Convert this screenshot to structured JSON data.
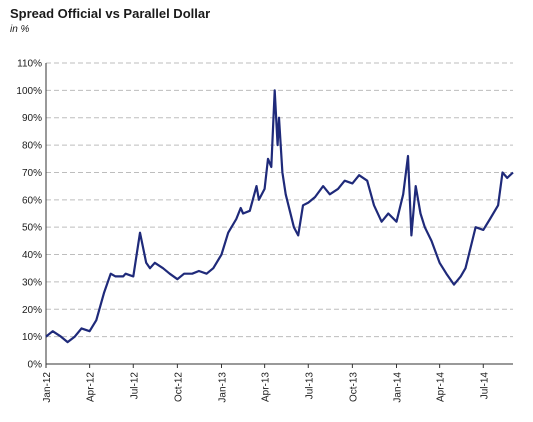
{
  "chart_data": {
    "type": "line",
    "title": "Spread Official vs Parallel Dollar",
    "subtitle": "in %",
    "xlabel": "",
    "ylabel": "",
    "ylim": [
      0,
      110
    ],
    "y_ticks": [
      "0%",
      "10%",
      "20%",
      "30%",
      "40%",
      "50%",
      "60%",
      "70%",
      "80%",
      "90%",
      "100%",
      "110%"
    ],
    "x_ticks": [
      "Jan-12",
      "Apr-12",
      "Jul-12",
      "Oct-12",
      "Jan-13",
      "Apr-13",
      "Jul-13",
      "Oct-13",
      "Jan-14",
      "Apr-14",
      "Jul-14"
    ],
    "grid": true,
    "color": "#1f2a7a",
    "series": [
      {
        "x": [
          "2012-01-01",
          "2012-01-15",
          "2012-02-01",
          "2012-02-15",
          "2012-03-01",
          "2012-03-15",
          "2012-04-01",
          "2012-04-15",
          "2012-05-01",
          "2012-05-15",
          "2012-05-25",
          "2012-06-01",
          "2012-06-10",
          "2012-06-15",
          "2012-07-01",
          "2012-07-15",
          "2012-07-28",
          "2012-08-01",
          "2012-08-05",
          "2012-08-15",
          "2012-09-01",
          "2012-09-15",
          "2012-10-01",
          "2012-10-15",
          "2012-11-01",
          "2012-11-15",
          "2012-12-01",
          "2012-12-15",
          "2013-01-01",
          "2013-01-15",
          "2013-02-01",
          "2013-02-10",
          "2013-02-15",
          "2013-03-01",
          "2013-03-15",
          "2013-03-20",
          "2013-04-01",
          "2013-04-08",
          "2013-04-15",
          "2013-04-22",
          "2013-04-28",
          "2013-05-01",
          "2013-05-08",
          "2013-05-15",
          "2013-06-01",
          "2013-06-10",
          "2013-06-20",
          "2013-07-01",
          "2013-07-15",
          "2013-08-01",
          "2013-08-15",
          "2013-09-01",
          "2013-09-15",
          "2013-10-01",
          "2013-10-15",
          "2013-11-01",
          "2013-11-15",
          "2013-12-01",
          "2013-12-15",
          "2014-01-01",
          "2014-01-15",
          "2014-01-25",
          "2014-02-01",
          "2014-02-10",
          "2014-02-20",
          "2014-03-01",
          "2014-03-15",
          "2014-04-01",
          "2014-04-15",
          "2014-05-01",
          "2014-05-15",
          "2014-05-25",
          "2014-06-01",
          "2014-06-15",
          "2014-07-01",
          "2014-07-15",
          "2014-08-01",
          "2014-08-10",
          "2014-08-20",
          "2014-09-01"
        ],
        "y": [
          10,
          12,
          10,
          8,
          10,
          13,
          12,
          16,
          26,
          33,
          32,
          32,
          32,
          33,
          32,
          48,
          37,
          36,
          35,
          37,
          35,
          33,
          31,
          33,
          33,
          34,
          33,
          35,
          40,
          48,
          53,
          57,
          55,
          56,
          65,
          60,
          64,
          75,
          72,
          100,
          80,
          90,
          70,
          62,
          50,
          47,
          58,
          59,
          61,
          65,
          62,
          64,
          67,
          66,
          69,
          67,
          58,
          52,
          55,
          52,
          62,
          76,
          47,
          65,
          55,
          50,
          45,
          37,
          33,
          29,
          32,
          35,
          40,
          50,
          49,
          53,
          58,
          70,
          68,
          70
        ]
      }
    ]
  }
}
